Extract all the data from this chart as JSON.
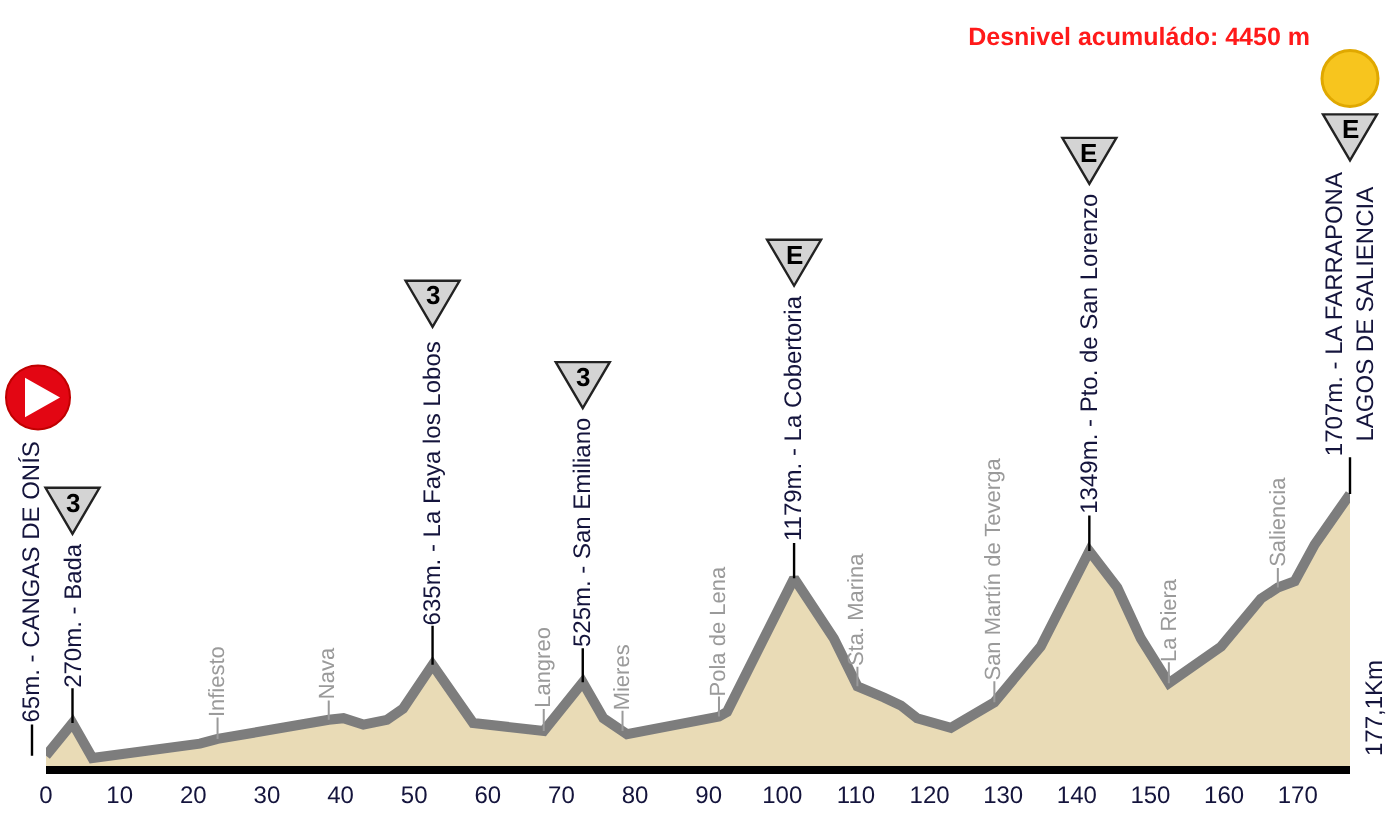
{
  "chart_data": {
    "type": "area",
    "title": "Desnivel acumuládo: 4450 m",
    "x": [
      0,
      3.6,
      6.3,
      20.9,
      23.3,
      38.4,
      40.4,
      43.1,
      46.3,
      48.5,
      52.5,
      58.0,
      67.6,
      72.9,
      75.7,
      78.9,
      91.4,
      92.5,
      101.6,
      107.0,
      110.2,
      113.8,
      116.1,
      118.3,
      122.9,
      128.8,
      135.1,
      141.7,
      145.5,
      148.7,
      152.5,
      159.6,
      165.0,
      167.3,
      169.6,
      172.3,
      177.1
    ],
    "values": [
      65,
      270,
      50,
      140,
      170,
      290,
      300,
      260,
      290,
      360,
      635,
      270,
      220,
      525,
      300,
      200,
      310,
      340,
      1179,
      800,
      500,
      430,
      380,
      300,
      240,
      400,
      750,
      1349,
      1120,
      800,
      520,
      750,
      1050,
      1120,
      1160,
      1390,
      1707
    ],
    "value_labels": [
      "65m. - CANGAS DE ONÍS",
      "270m. - Bada",
      null,
      null,
      null,
      null,
      null,
      null,
      null,
      null,
      "635m. - La Faya los Lobos",
      null,
      null,
      "525m. - San Emiliano",
      null,
      null,
      null,
      null,
      "1179m. - La Cobertoria",
      null,
      null,
      null,
      null,
      null,
      null,
      null,
      null,
      "1349m. - Pto. de San Lorenzo",
      null,
      null,
      null,
      null,
      null,
      null,
      null,
      null,
      "1707m. - LA FARRAPONA\nLAGOS DE SALIENCIA"
    ],
    "color": "#e9dbb6",
    "xlim": [
      0,
      177.1
    ],
    "xticks": [
      0,
      10,
      20,
      30,
      40,
      50,
      60,
      70,
      80,
      90,
      100,
      110,
      120,
      130,
      140,
      150,
      160,
      170
    ],
    "tick_labels": "x",
    "annotations": [
      "3",
      "3",
      "3",
      "E",
      "E",
      "E",
      {
        "text": "Infiesto",
        "x": 23.3,
        "y": 170
      },
      {
        "text": "Nava",
        "x": 38.4,
        "y": 290
      },
      {
        "text": "Langreo",
        "x": 67.6,
        "y": 220
      },
      {
        "text": "Mieres",
        "x": 78.3,
        "y": 220
      },
      {
        "text": "Pola de Lena",
        "x": 91.4,
        "y": 310
      },
      {
        "text": "Sta. Marina",
        "x": 110.2,
        "y": 500
      },
      {
        "text": "San Martín de Teverga",
        "x": 128.8,
        "y": 400
      },
      {
        "text": "La Riera",
        "x": 152.5,
        "y": 520
      },
      {
        "text": "Saliencia",
        "x": 167.3,
        "y": 1120
      },
      {
        "text": "177,1Km",
        "x": 177.1,
        "y": 0
      }
    ]
  }
}
